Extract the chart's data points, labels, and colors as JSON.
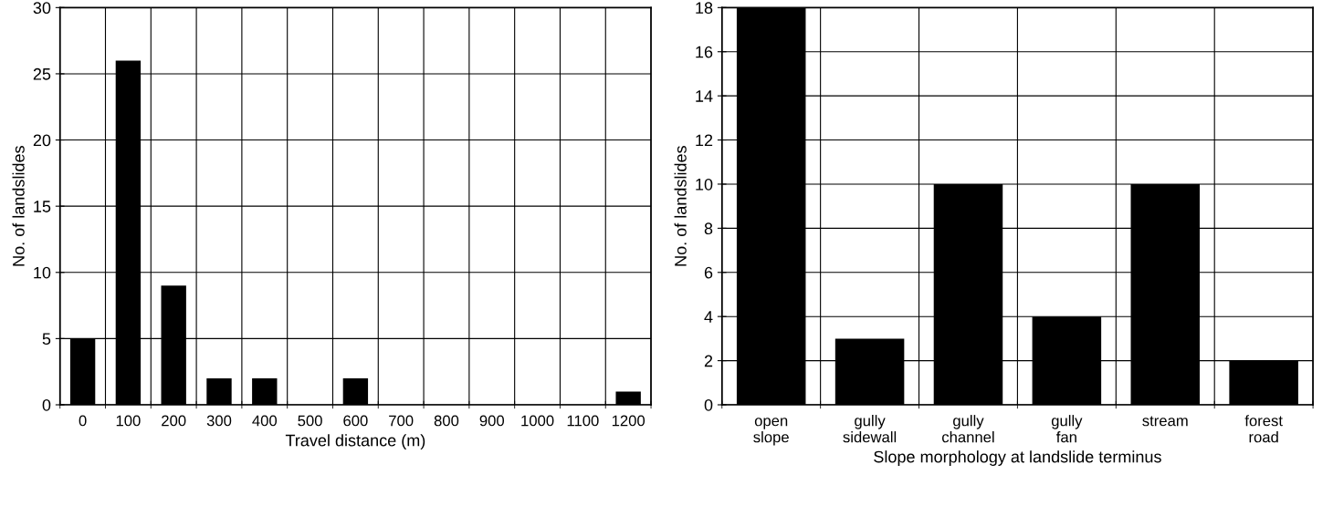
{
  "chart_data": [
    {
      "type": "bar",
      "xlabel": "Travel distance (m)",
      "ylabel": "No. of landslides",
      "categories": [
        "0",
        "100",
        "200",
        "300",
        "400",
        "500",
        "600",
        "700",
        "800",
        "900",
        "1000",
        "1100",
        "1200"
      ],
      "series": [
        {
          "color": "#000000",
          "values": [
            5,
            26,
            9,
            2,
            2,
            0,
            2,
            0,
            0,
            0,
            0,
            0,
            1
          ]
        }
      ],
      "ylim": [
        0,
        30
      ],
      "yticks": [
        0,
        5,
        10,
        15,
        20,
        25,
        30
      ],
      "grid": true
    },
    {
      "type": "bar",
      "xlabel": "Slope morphology at landslide terminus",
      "ylabel": "No. of landslides",
      "categories": [
        "open\nslope",
        "gully\nsidewall",
        "gully\nchannel",
        "gully\nfan",
        "stream",
        "forest\nroad"
      ],
      "series": [
        {
          "color": "#000000",
          "values": [
            18,
            3,
            10,
            4,
            10,
            2
          ]
        }
      ],
      "ylim": [
        0,
        18
      ],
      "yticks": [
        0,
        2,
        4,
        6,
        8,
        10,
        12,
        14,
        16,
        18
      ],
      "grid": true
    }
  ]
}
